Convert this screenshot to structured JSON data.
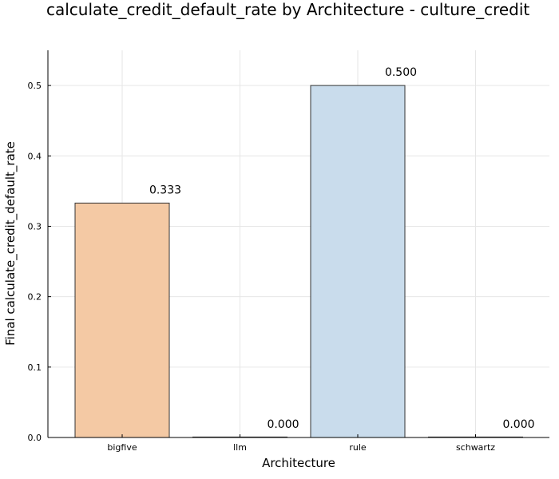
{
  "chart_data": {
    "type": "bar",
    "title": "calculate_credit_default_rate by Architecture - culture_credit",
    "xlabel": "Architecture",
    "ylabel": "Final calculate_credit_default_rate",
    "categories": [
      "bigfive",
      "llm",
      "rule",
      "schwartz"
    ],
    "values": [
      0.333,
      0.0,
      0.5,
      0.0
    ],
    "data_labels": [
      "0.333",
      "0.000",
      "0.500",
      "0.000"
    ],
    "bar_colors": [
      "#f4c9a4",
      "#f4c9a4",
      "#c9dcec",
      "#c9dcec"
    ],
    "ylim": [
      0,
      0.55
    ],
    "yticks": [
      0.0,
      0.1,
      0.2,
      0.3,
      0.4,
      0.5
    ],
    "ytick_labels": [
      "0.0",
      "0.1",
      "0.2",
      "0.3",
      "0.4",
      "0.5"
    ],
    "grid": true,
    "legend": false
  }
}
